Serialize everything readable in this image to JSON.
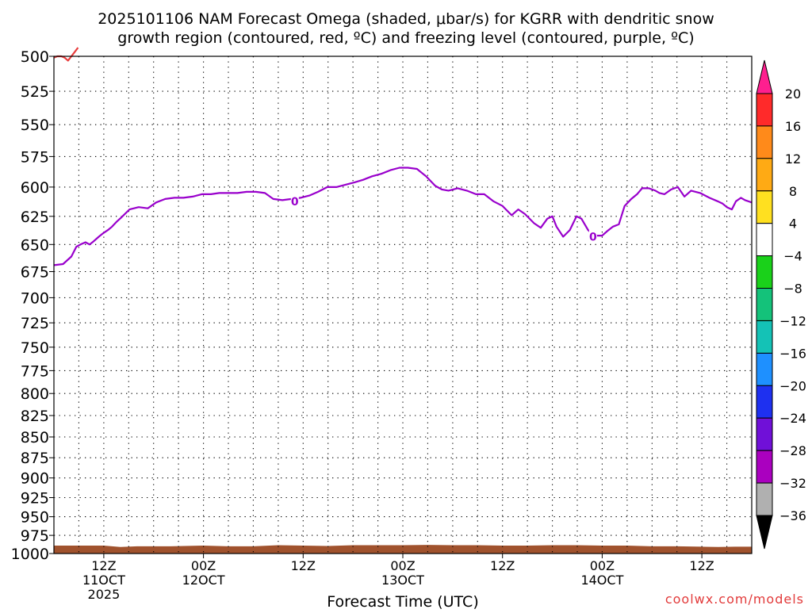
{
  "chart_data": {
    "type": "line",
    "title_line1": "2025101106 NAM Forecast Omega (shaded, μbar/s) for KGRR with dendritic snow",
    "title_line2": "growth region (contoured, red, ºC) and freezing level (contoured, purple, ºC)",
    "xlabel": "Forecast Time (UTC)",
    "watermark": "coolwx.com/models",
    "y_scale": "log-pressure",
    "y_reversed": true,
    "ylim": [
      500,
      1000
    ],
    "grid": true,
    "y_ticks": [
      500,
      525,
      550,
      575,
      600,
      625,
      650,
      675,
      700,
      725,
      750,
      775,
      800,
      825,
      850,
      875,
      900,
      925,
      950,
      975,
      1000
    ],
    "x_range_hours": [
      6,
      90
    ],
    "x_grid_every_hours": 3,
    "x_ticks": [
      {
        "hour": 12,
        "lines": [
          "12Z",
          "11OCT",
          "2025"
        ]
      },
      {
        "hour": 24,
        "lines": [
          "00Z",
          "12OCT"
        ]
      },
      {
        "hour": 36,
        "lines": [
          "12Z"
        ]
      },
      {
        "hour": 48,
        "lines": [
          "00Z",
          "13OCT"
        ]
      },
      {
        "hour": 60,
        "lines": [
          "12Z"
        ]
      },
      {
        "hour": 72,
        "lines": [
          "00Z",
          "14OCT"
        ]
      },
      {
        "hour": 84,
        "lines": [
          "12Z"
        ]
      }
    ],
    "series": [
      {
        "label": "0",
        "color": "#9900cc",
        "label_positions": [
          {
            "hour": 35.0,
            "pressure": 612
          },
          {
            "hour": 70.9,
            "pressure": 643
          }
        ],
        "x": [
          6.0,
          7.1,
          8.1,
          8.7,
          9.2,
          9.8,
          10.3,
          10.8,
          11.4,
          11.9,
          12.5,
          13.0,
          13.5,
          14.1,
          15.1,
          16.2,
          17.3,
          18.3,
          19.4,
          20.5,
          21.6,
          22.7,
          23.8,
          24.9,
          25.9,
          27.0,
          28.1,
          29.2,
          30.3,
          31.4,
          32.4,
          33.5,
          34.6,
          35.7,
          36.8,
          37.8,
          38.9,
          40.0,
          41.1,
          42.2,
          43.2,
          44.3,
          45.4,
          46.5,
          47.6,
          48.6,
          49.7,
          50.8,
          51.9,
          52.7,
          53.5,
          54.6,
          55.7,
          56.8,
          57.8,
          58.9,
          60.0,
          61.1,
          61.9,
          62.7,
          63.8,
          64.6,
          65.4,
          66.0,
          66.5,
          67.3,
          68.1,
          68.9,
          69.5,
          70.3,
          70.9,
          71.4,
          72.0,
          72.6,
          73.3,
          74.0,
          74.7,
          75.5,
          76.2,
          76.8,
          77.6,
          78.4,
          78.9,
          79.5,
          80.3,
          81.1,
          81.9,
          82.7,
          83.8,
          84.9,
          85.9,
          86.5,
          87.0,
          87.6,
          88.1,
          88.7,
          89.2,
          90.0
        ],
        "y": [
          669,
          668,
          661,
          652,
          650,
          648,
          650,
          647,
          643,
          640,
          637,
          634,
          630,
          626,
          619,
          617,
          618,
          613,
          610,
          609,
          609,
          608,
          606,
          606,
          605,
          605,
          605,
          604,
          604,
          605,
          610,
          611,
          610,
          609,
          607,
          604,
          600,
          600,
          598,
          596,
          594,
          591,
          589,
          586,
          584,
          584,
          585,
          591,
          599,
          602,
          603,
          601,
          603,
          606,
          606,
          612,
          616,
          624,
          619,
          623,
          631,
          635,
          627,
          625,
          634,
          643,
          637,
          625,
          627,
          637,
          641,
          642,
          642,
          638,
          634,
          632,
          616,
          610,
          606,
          601,
          601,
          603,
          605,
          606,
          602,
          600,
          608,
          603,
          605,
          609,
          612,
          614,
          617,
          619,
          612,
          609,
          611,
          613
        ]
      },
      {
        "label": "",
        "color": "#e83c3c",
        "x": [
          6.0,
          6.4,
          6.9,
          7.3,
          7.7,
          8.1,
          8.5,
          8.9
        ],
        "y": [
          501,
          500,
          500,
          501,
          503,
          500,
          497,
          494
        ]
      }
    ],
    "terrain": {
      "color": "#a0522d",
      "top_pressure": 989,
      "x": [
        6,
        12,
        14,
        16,
        20,
        24,
        27,
        30,
        33,
        36,
        39,
        42,
        45,
        48,
        51,
        54,
        57,
        60,
        63,
        66,
        69,
        72,
        75,
        78,
        81,
        84,
        86,
        88,
        90
      ],
      "y": [
        989.0,
        989.0,
        991.0,
        990.0,
        990.0,
        989.0,
        990.0,
        990.0,
        988.5,
        989.0,
        989.5,
        988.5,
        988.5,
        988.5,
        988.0,
        988.5,
        988.5,
        989.0,
        989.0,
        988.5,
        988.5,
        989.0,
        989.0,
        990.0,
        990.0,
        990.5,
        991.0,
        990.5,
        990.5
      ]
    },
    "colorbar": {
      "labels": [
        "20",
        "16",
        "12",
        "8",
        "4",
        "−4",
        "−8",
        "−12",
        "−16",
        "−20",
        "−24",
        "−28",
        "−32",
        "−36"
      ],
      "top_arrow_color": "#ff1f8f",
      "bottom_arrow_color": "#000000",
      "fills": [
        "#ff2a2a",
        "#ff8a1a",
        "#ffaa14",
        "#ffe020",
        "#ffffff",
        "#1ad11a",
        "#14c27a",
        "#14c2b6",
        "#1e90ff",
        "#1e30f0",
        "#7010d8",
        "#aa00bf",
        "#b0b0b0"
      ]
    }
  }
}
